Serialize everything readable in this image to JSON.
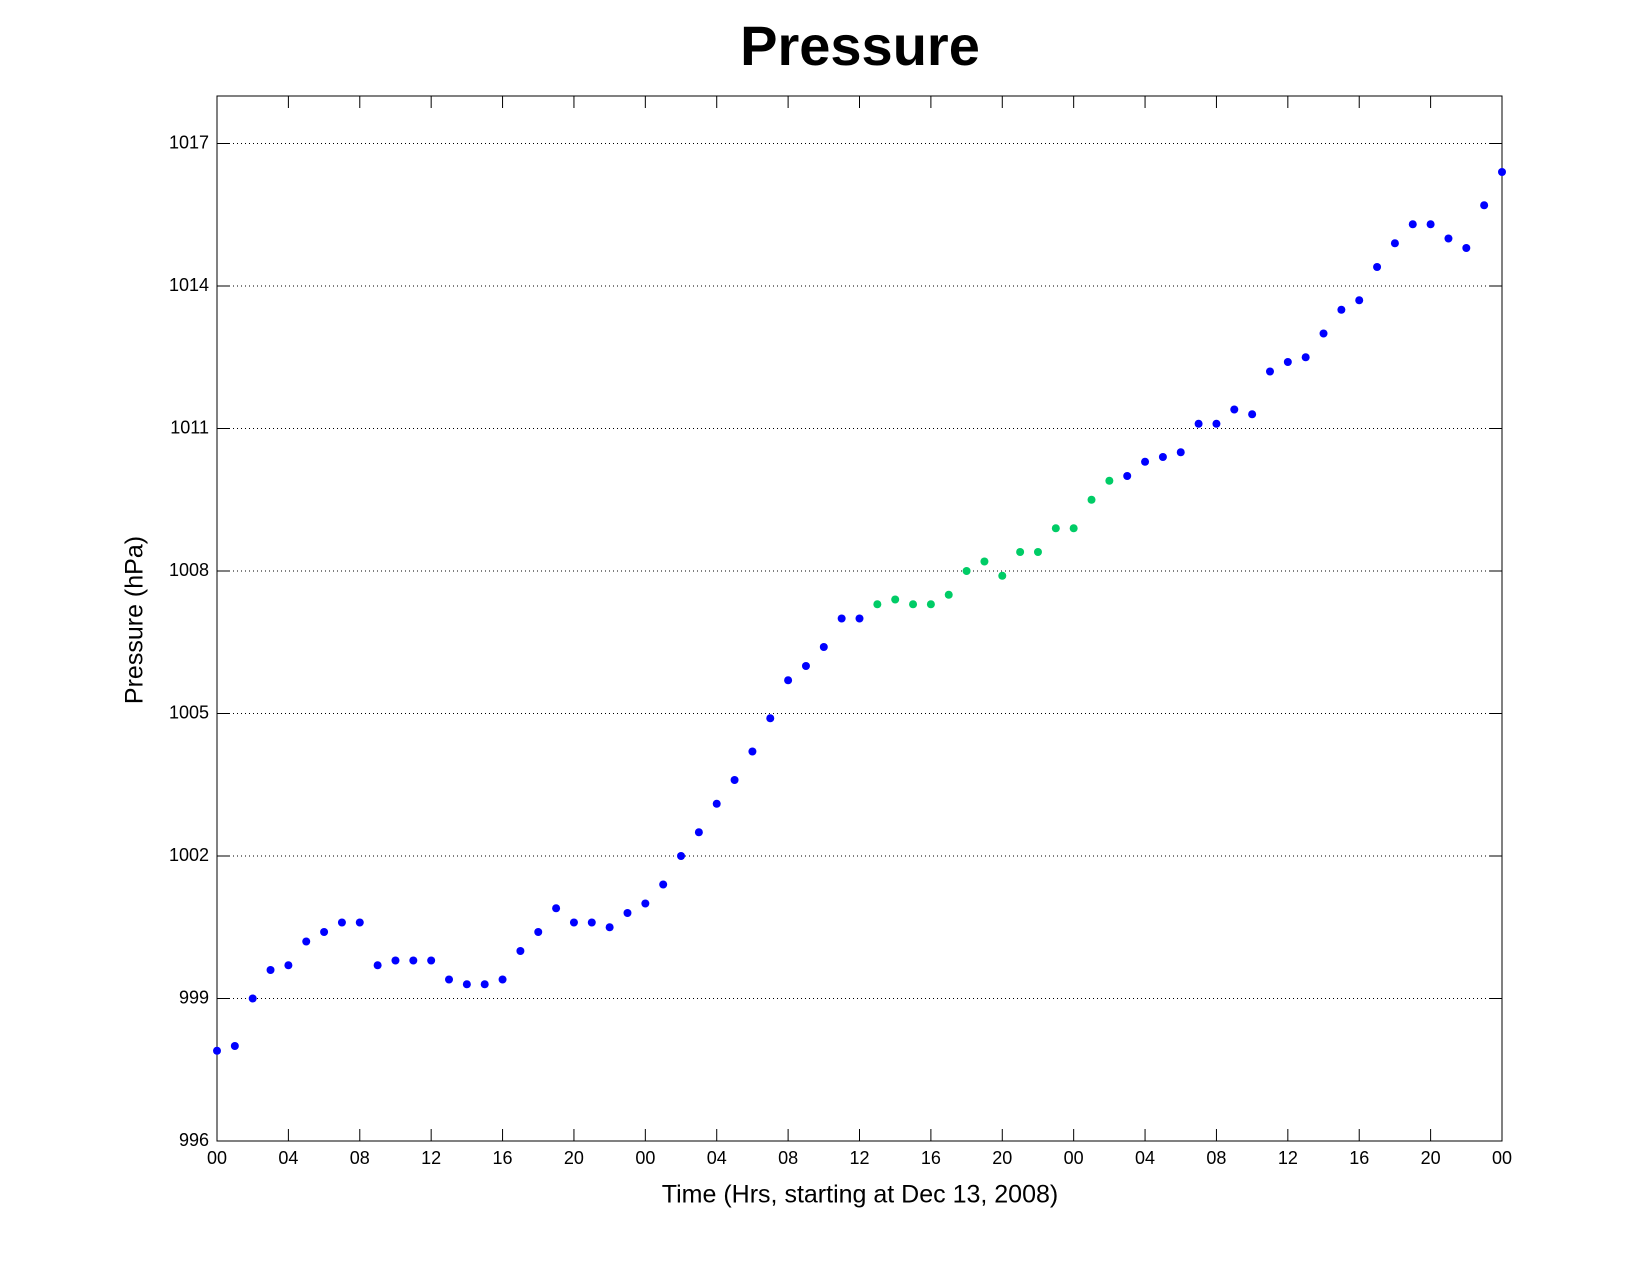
{
  "chart_data": {
    "type": "scatter",
    "title": "Pressure",
    "xlabel": "Time (Hrs, starting at Dec 13, 2008)",
    "ylabel": "Pressure (hPa)",
    "xlim": [
      0,
      72
    ],
    "ylim": [
      996,
      1018
    ],
    "xticks": [
      {
        "value": 0,
        "label": "00"
      },
      {
        "value": 4,
        "label": "04"
      },
      {
        "value": 8,
        "label": "08"
      },
      12,
      16,
      20,
      {
        "value": 24,
        "label": "00"
      },
      {
        "value": 28,
        "label": "04"
      },
      {
        "value": 32,
        "label": "08"
      },
      {
        "value": 36,
        "label": "12"
      },
      {
        "value": 40,
        "label": "16"
      },
      {
        "value": 44,
        "label": "20"
      },
      {
        "value": 48,
        "label": "00"
      },
      {
        "value": 52,
        "label": "04"
      },
      {
        "value": 56,
        "label": "08"
      },
      {
        "value": 60,
        "label": "12"
      },
      {
        "value": 64,
        "label": "16"
      },
      {
        "value": 68,
        "label": "20"
      },
      {
        "value": 72,
        "label": "00"
      }
    ],
    "yticks": [
      996,
      999,
      1002,
      1005,
      1008,
      1011,
      1014,
      1017
    ],
    "grid": "y",
    "series": [
      {
        "color": "#0000ff",
        "x": [
          0,
          1,
          2,
          3,
          4,
          5,
          6,
          7,
          8,
          9,
          10,
          11,
          12,
          13,
          14,
          15,
          16,
          17,
          18,
          19,
          20,
          21,
          22,
          23,
          24,
          25,
          26,
          27,
          28,
          29,
          30,
          31,
          32,
          33,
          34,
          35,
          36,
          51,
          52,
          53,
          54,
          55,
          56,
          57,
          58,
          59,
          60,
          61,
          62,
          63,
          64,
          65,
          66,
          67,
          68,
          69,
          70,
          71,
          72
        ],
        "values": [
          997.9,
          998.0,
          999.0,
          999.6,
          999.7,
          1000.2,
          1000.4,
          1000.6,
          1000.6,
          999.7,
          999.8,
          999.8,
          999.8,
          999.4,
          999.3,
          999.3,
          999.4,
          1000.0,
          1000.4,
          1000.9,
          1000.6,
          1000.6,
          1000.5,
          1000.8,
          1001.0,
          1001.4,
          1002.0,
          1002.5,
          1003.1,
          1003.6,
          1004.2,
          1004.9,
          1005.7,
          1006.0,
          1006.4,
          1007.0,
          1007.0,
          1010.0,
          1010.3,
          1010.4,
          1010.5,
          1011.1,
          1011.1,
          1011.4,
          1011.3,
          1012.2,
          1012.4,
          1012.5,
          1013.0,
          1013.5,
          1013.7,
          1014.4,
          1014.9,
          1015.3,
          1015.3,
          1015.0,
          1014.8,
          1015.7,
          1016.4
        ]
      },
      {
        "color": "#00cc66",
        "x": [
          37,
          38,
          39,
          40,
          41,
          42,
          43,
          44,
          45,
          46,
          47,
          48,
          49,
          50
        ],
        "values": [
          1007.3,
          1007.4,
          1007.3,
          1007.3,
          1007.5,
          1008.0,
          1008.2,
          1007.9,
          1008.4,
          1008.4,
          1008.9,
          1008.9,
          1009.5,
          1009.9
        ]
      }
    ]
  }
}
